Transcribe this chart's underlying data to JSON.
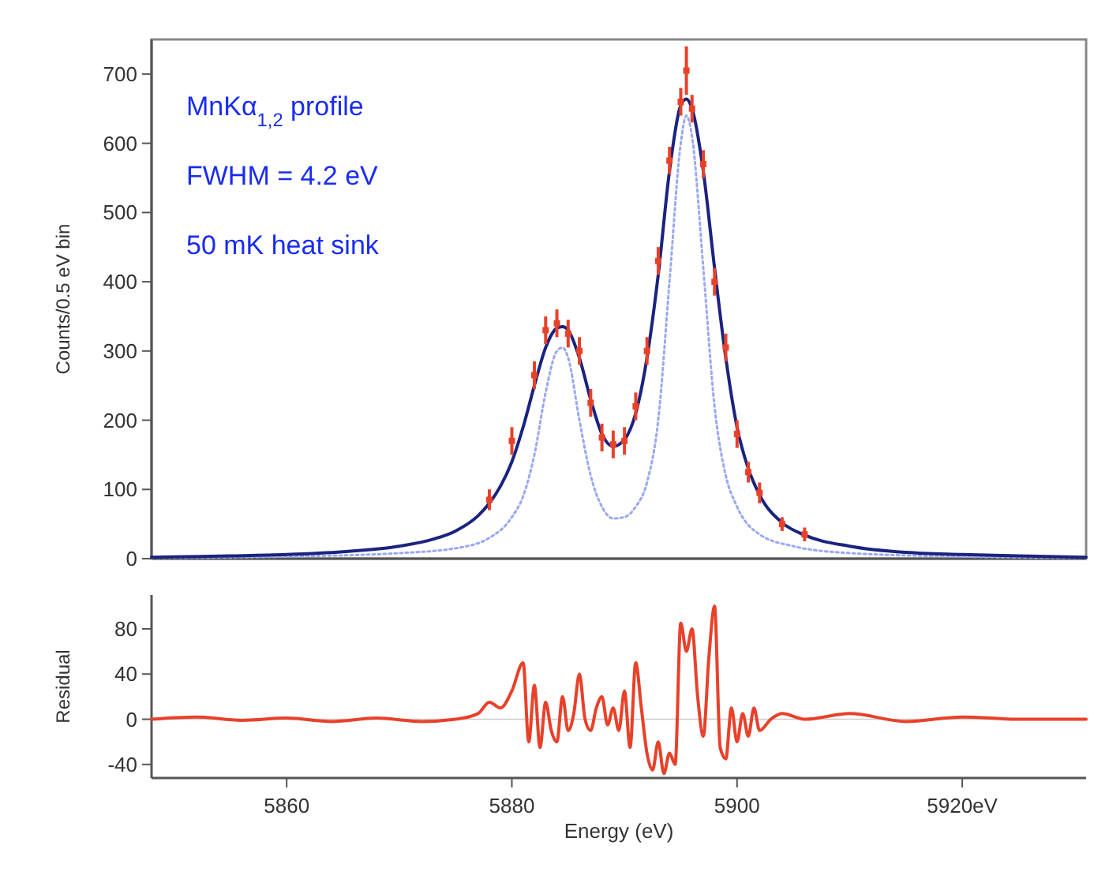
{
  "chart_data": [
    {
      "type": "line",
      "ylabel": "Counts/0.5 eV bin",
      "xlim": [
        5848,
        5931
      ],
      "ylim": [
        0,
        750
      ],
      "yticks": [
        0,
        100,
        200,
        300,
        400,
        500,
        600,
        700
      ],
      "tick_labels": "y",
      "annotations": [
        "MnKα$_{1,2}$ profile",
        "FWHM = 4.2 eV",
        "50 mK heat sink"
      ],
      "series": [
        {
          "color": "#9aa8f0",
          "line_style": "dotted",
          "x": [
            5848,
            5860,
            5870,
            5875,
            5878,
            5880,
            5881,
            5882,
            5883,
            5884,
            5884.5,
            5885,
            5886,
            5887,
            5888,
            5889,
            5890,
            5891,
            5892,
            5893,
            5894,
            5895,
            5895.5,
            5896,
            5897,
            5898,
            5899,
            5900,
            5902,
            5905,
            5910,
            5920,
            5931
          ],
          "values": [
            1,
            3,
            8,
            15,
            30,
            60,
            90,
            150,
            240,
            300,
            305,
            290,
            200,
            120,
            75,
            58,
            60,
            75,
            110,
            200,
            400,
            600,
            640,
            610,
            420,
            220,
            120,
            75,
            35,
            18,
            8,
            3,
            1
          ]
        },
        {
          "type": "scatter",
          "color": "#e8412a",
          "marker": "square",
          "x": [
            5878,
            5880,
            5882,
            5883,
            5884,
            5885,
            5886,
            5887,
            5888,
            5889,
            5890,
            5891,
            5892,
            5893,
            5894,
            5895,
            5895.5,
            5896,
            5897,
            5898,
            5899,
            5900,
            5901,
            5902,
            5904,
            5906
          ],
          "values": [
            85,
            170,
            265,
            330,
            340,
            325,
            300,
            225,
            175,
            165,
            170,
            220,
            300,
            430,
            575,
            660,
            705,
            650,
            570,
            400,
            305,
            180,
            125,
            95,
            50,
            35
          ],
          "errors": [
            15,
            20,
            20,
            20,
            20,
            20,
            20,
            20,
            20,
            20,
            20,
            20,
            20,
            20,
            20,
            20,
            35,
            20,
            20,
            20,
            20,
            20,
            15,
            15,
            10,
            10
          ]
        },
        {
          "color": "#1a237e",
          "line_style": "solid",
          "x": [
            5848,
            5855,
            5860,
            5865,
            5870,
            5873,
            5875,
            5877,
            5878,
            5879,
            5880,
            5881,
            5882,
            5883,
            5884,
            5884.5,
            5885,
            5886,
            5887,
            5888,
            5889,
            5890,
            5891,
            5892,
            5893,
            5894,
            5895,
            5895.5,
            5896,
            5897,
            5898,
            5899,
            5900,
            5901,
            5902,
            5904,
            5906,
            5910,
            5915,
            5920,
            5925,
            5931
          ],
          "values": [
            2,
            4,
            6,
            10,
            18,
            28,
            40,
            62,
            80,
            105,
            140,
            190,
            250,
            305,
            333,
            335,
            330,
            290,
            230,
            180,
            162,
            172,
            210,
            290,
            410,
            560,
            655,
            664,
            650,
            560,
            420,
            290,
            190,
            130,
            92,
            52,
            34,
            18,
            9,
            6,
            4,
            2
          ]
        }
      ]
    },
    {
      "type": "line",
      "ylabel": "Residual",
      "xlabel": "Energy (eV)",
      "xlim": [
        5848,
        5931
      ],
      "ylim": [
        -52,
        110
      ],
      "yticks": [
        -40,
        0,
        40,
        80
      ],
      "xticks": [
        5860,
        5880,
        5900,
        {
          "value": 5920,
          "label": "5920eV"
        }
      ],
      "series": [
        {
          "color": "#e8412a",
          "line_style": "solid",
          "x": [
            5848,
            5852,
            5856,
            5860,
            5864,
            5868,
            5872,
            5875,
            5877,
            5878,
            5879,
            5880,
            5881,
            5881.5,
            5882,
            5882.5,
            5883,
            5883.5,
            5884,
            5884.5,
            5885,
            5885.5,
            5886,
            5886.5,
            5887,
            5887.5,
            5888,
            5888.5,
            5889,
            5889.5,
            5890,
            5890.5,
            5891,
            5891.5,
            5892,
            5892.5,
            5893,
            5893.5,
            5894,
            5894.5,
            5895,
            5895.5,
            5896,
            5896.5,
            5897,
            5897.5,
            5898,
            5898.5,
            5899,
            5899.5,
            5900,
            5900.5,
            5901,
            5901.5,
            5902,
            5903,
            5904,
            5906,
            5910,
            5915,
            5920,
            5925,
            5931
          ],
          "values": [
            0,
            2,
            -1,
            1,
            -2,
            1,
            -2,
            0,
            5,
            15,
            10,
            25,
            50,
            -20,
            30,
            -25,
            15,
            -10,
            -20,
            20,
            -10,
            5,
            40,
            0,
            -10,
            10,
            20,
            -5,
            10,
            -10,
            25,
            -25,
            50,
            10,
            -30,
            -45,
            -20,
            -48,
            -30,
            -40,
            85,
            60,
            80,
            20,
            -15,
            55,
            100,
            -25,
            -35,
            10,
            -20,
            5,
            -15,
            10,
            -10,
            0,
            5,
            0,
            5,
            -2,
            2,
            0,
            0
          ]
        }
      ]
    }
  ]
}
